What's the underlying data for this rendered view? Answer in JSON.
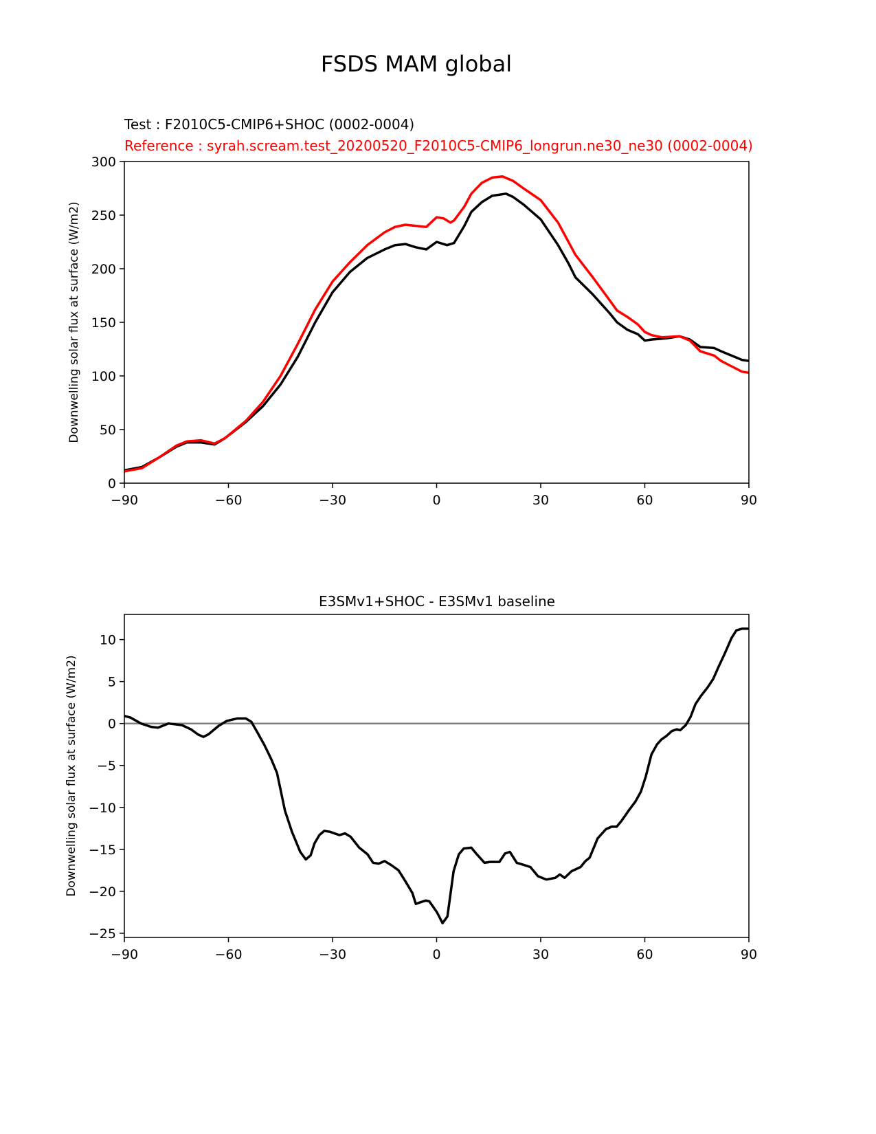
{
  "figure_title": "FSDS MAM global",
  "chart_data": [
    {
      "type": "line",
      "test_label": "Test : F2010C5-CMIP6+SHOC (0002-0004)",
      "reference_label": "Reference : syrah.scream.test_20200520_F2010C5-CMIP6_longrun.ne30_ne30 (0002-0004)",
      "xlabel": "",
      "ylabel": "Downwelling solar flux at surface (W/m2)",
      "xlim": [
        -90,
        90
      ],
      "ylim": [
        0,
        300
      ],
      "xticks": [
        -90,
        -60,
        -30,
        0,
        30,
        60,
        90
      ],
      "xtick_labels": [
        "−90",
        "−60",
        "−30",
        "0",
        "30",
        "60",
        "90"
      ],
      "yticks": [
        0,
        50,
        100,
        150,
        200,
        250,
        300
      ],
      "ytick_labels": [
        "0",
        "50",
        "100",
        "150",
        "200",
        "250",
        "300"
      ],
      "grid": false,
      "series": [
        {
          "name": "Test",
          "color": "#000000",
          "x": [
            -90,
            -85,
            -80,
            -75,
            -72,
            -68,
            -64,
            -61,
            -55,
            -50,
            -45,
            -40,
            -35,
            -30,
            -25,
            -20,
            -15,
            -12,
            -9,
            -6,
            -3,
            0,
            3,
            5,
            8,
            10,
            13,
            16,
            20,
            22,
            25,
            30,
            35,
            38,
            40,
            45,
            50,
            52,
            55,
            58,
            60,
            62,
            66,
            70,
            73,
            76,
            80,
            82,
            85,
            88,
            90
          ],
          "y": [
            12,
            15,
            24,
            34,
            38,
            38,
            36,
            42,
            57,
            72,
            92,
            118,
            150,
            178,
            197,
            210,
            218,
            222,
            223,
            220,
            218,
            225,
            222,
            224,
            240,
            253,
            262,
            268,
            270,
            267,
            260,
            246,
            222,
            205,
            192,
            176,
            158,
            150,
            143,
            139,
            133,
            134,
            135,
            137,
            134,
            127,
            126,
            123,
            119,
            115,
            114
          ]
        },
        {
          "name": "Reference",
          "color": "#ff0000",
          "x": [
            -90,
            -85,
            -80,
            -75,
            -72,
            -68,
            -64,
            -61,
            -55,
            -50,
            -45,
            -40,
            -35,
            -30,
            -25,
            -20,
            -15,
            -12,
            -9,
            -6,
            -3,
            0,
            2,
            4,
            5,
            8,
            10,
            13,
            16,
            19,
            22,
            25,
            30,
            35,
            40,
            45,
            50,
            52,
            55,
            58,
            60,
            62,
            65,
            70,
            73,
            76,
            80,
            82,
            85,
            88,
            90
          ],
          "y": [
            11,
            14,
            24,
            35,
            39,
            40,
            37,
            42,
            58,
            76,
            100,
            130,
            162,
            188,
            206,
            222,
            234,
            239,
            241,
            240,
            239,
            248,
            247,
            243,
            245,
            258,
            270,
            280,
            285,
            286,
            282,
            275,
            264,
            243,
            213,
            192,
            170,
            161,
            155,
            148,
            141,
            138,
            136,
            137,
            133,
            123,
            119,
            114,
            109,
            104,
            103
          ]
        }
      ]
    },
    {
      "type": "line",
      "title": "E3SMv1+SHOC - E3SMv1 baseline",
      "xlabel": "",
      "ylabel": "Downwelling solar flux at surface (W/m2)",
      "xlim": [
        -90,
        90
      ],
      "ylim": [
        -25.5,
        13
      ],
      "xticks": [
        -90,
        -60,
        -30,
        0,
        30,
        60,
        90
      ],
      "xtick_labels": [
        "−90",
        "−60",
        "−30",
        "0",
        "30",
        "60",
        "90"
      ],
      "yticks": [
        -25,
        -20,
        -15,
        -10,
        -5,
        0,
        5,
        10
      ],
      "ytick_labels": [
        "−25",
        "−20",
        "−15",
        "−10",
        "−5",
        "0",
        "5",
        "10"
      ],
      "grid": false,
      "zero_line_color": "#808080",
      "series": [
        {
          "name": "Difference",
          "color": "#000000",
          "x": [
            -90,
            -88.2,
            -85.2,
            -82.3,
            -80.3,
            -77.3,
            -73.4,
            -70.8,
            -68.8,
            -67.2,
            -65.8,
            -62.9,
            -60.5,
            -57.5,
            -55,
            -53.4,
            -51.6,
            -49.6,
            -47.6,
            -46,
            -43.7,
            -41.7,
            -39.3,
            -37.7,
            -36.3,
            -35.2,
            -33.8,
            -32.4,
            -30.8,
            -28,
            -26.4,
            -24.8,
            -22.3,
            -19.9,
            -18.3,
            -16.7,
            -15,
            -13,
            -11,
            -9,
            -7,
            -6,
            -4.6,
            -3.1,
            -2.1,
            0.1,
            1.7,
            3.1,
            4.9,
            6.4,
            7.8,
            10,
            11.6,
            13.8,
            15.4,
            18.1,
            19.7,
            21.1,
            23.1,
            24.7,
            27,
            29.2,
            31.6,
            34.2,
            35.5,
            36.9,
            38.9,
            41.5,
            42.9,
            44.1,
            46.4,
            48.8,
            50.4,
            51.9,
            53.3,
            55.3,
            57.3,
            58.9,
            60.3,
            61.9,
            63.5,
            64.8,
            66.2,
            67.8,
            69.2,
            70.2,
            71.8,
            73.2,
            74.6,
            76.2,
            78.1,
            79.7,
            81.3,
            83.1,
            85,
            86.4,
            88,
            90
          ],
          "y": [
            0.9,
            0.7,
            0,
            -0.4,
            -0.5,
            0,
            -0.2,
            -0.7,
            -1.3,
            -1.6,
            -1.3,
            -0.3,
            0.3,
            0.6,
            0.6,
            0.2,
            -1.1,
            -2.6,
            -4.3,
            -5.9,
            -10.4,
            -12.9,
            -15.3,
            -16.2,
            -15.7,
            -14.3,
            -13.3,
            -12.8,
            -12.9,
            -13.3,
            -13.1,
            -13.5,
            -14.8,
            -15.6,
            -16.6,
            -16.7,
            -16.4,
            -16.9,
            -17.5,
            -18.8,
            -20.2,
            -21.5,
            -21.3,
            -21.1,
            -21.2,
            -22.5,
            -23.8,
            -23,
            -17.6,
            -15.6,
            -14.9,
            -14.8,
            -15.6,
            -16.6,
            -16.5,
            -16.5,
            -15.5,
            -15.3,
            -16.6,
            -16.8,
            -17.1,
            -18.2,
            -18.6,
            -18.4,
            -18,
            -18.4,
            -17.6,
            -17.1,
            -16.4,
            -16,
            -13.7,
            -12.6,
            -12.3,
            -12.3,
            -11.6,
            -10.4,
            -9.3,
            -8.1,
            -6.3,
            -3.7,
            -2.5,
            -1.9,
            -1.5,
            -0.9,
            -0.7,
            -0.8,
            -0.2,
            0.8,
            2.3,
            3.3,
            4.3,
            5.3,
            6.8,
            8.4,
            10.2,
            11.1,
            11.3,
            11.3
          ]
        }
      ]
    }
  ]
}
